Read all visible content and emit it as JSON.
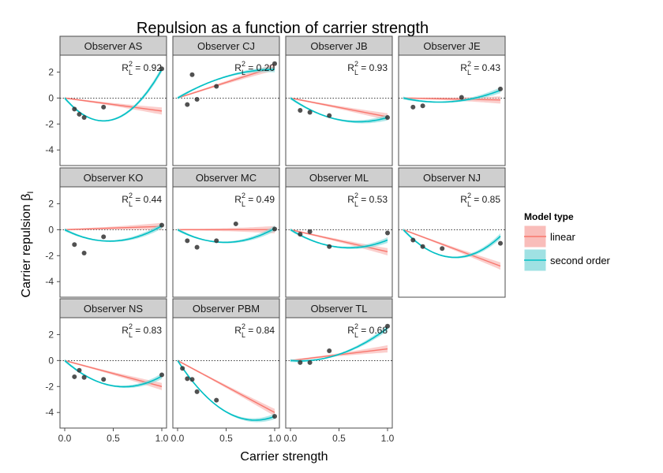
{
  "chart_data": {
    "type": "line",
    "title": "Repulsion as a function of carrier strength",
    "xlabel": "Carrier strength",
    "ylabel": "Carrier repulsion β",
    "ylabel_subscript": "I",
    "xlim": [
      0,
      1
    ],
    "ylim": [
      -5.2,
      3.3
    ],
    "x_ticks": [
      {
        "value": 0,
        "label": "0.0"
      },
      {
        "value": 0.5,
        "label": "0.5"
      },
      {
        "value": 1,
        "label": "1.0"
      }
    ],
    "y_ticks": [
      {
        "value": 2,
        "label": "2"
      },
      {
        "value": 0,
        "label": "0"
      },
      {
        "value": -2,
        "label": "-2"
      },
      {
        "value": -4,
        "label": "-4"
      }
    ],
    "reference_line": 0,
    "r2_prefix": "R",
    "r2_sup": "2",
    "r2_sub": "L",
    "legend": {
      "title": "Model type",
      "position": "right",
      "entries": [
        {
          "key": "linear",
          "label": "linear",
          "color": "#F8766D",
          "fill": "#F8A8A4"
        },
        {
          "key": "quadratic",
          "label": "second order",
          "color": "#00BFC4",
          "fill": "#7FD8DA"
        }
      ]
    },
    "point_color": "#333333",
    "panels": [
      {
        "label": "Observer AS",
        "r2": "0.92",
        "points": [
          [
            0.1,
            -0.85
          ],
          [
            0.15,
            -1.25
          ],
          [
            0.2,
            -1.5
          ],
          [
            0.4,
            -0.7
          ],
          [
            1.0,
            2.25
          ]
        ],
        "linear": [
          0,
          -1
        ],
        "quadratic": [
          0,
          -8.8,
          11.0
        ]
      },
      {
        "label": "Observer CJ",
        "r2": "0.20",
        "points": [
          [
            0.1,
            -0.5
          ],
          [
            0.15,
            1.8
          ],
          [
            0.2,
            -0.1
          ],
          [
            0.4,
            0.9
          ],
          [
            1.0,
            2.65
          ]
        ],
        "linear": [
          0,
          2.4
        ],
        "quadratic": [
          0,
          4.4,
          -2.2
        ]
      },
      {
        "label": "Observer JB",
        "r2": "0.93",
        "points": [
          [
            0.1,
            -0.95
          ],
          [
            0.2,
            -1.1
          ],
          [
            0.4,
            -1.35
          ],
          [
            1.0,
            -1.5
          ]
        ],
        "linear": [
          0,
          -1.45
        ],
        "quadratic": [
          0,
          -5.2,
          3.7
        ]
      },
      {
        "label": "Observer JE",
        "r2": "0.43",
        "points": [
          [
            0.1,
            -0.7
          ],
          [
            0.2,
            -0.6
          ],
          [
            0.6,
            0.05
          ],
          [
            1.0,
            0.7
          ]
        ],
        "linear": [
          0,
          -0.15
        ],
        "quadratic": [
          0,
          -1.7,
          2.3
        ]
      },
      {
        "label": "Observer KO",
        "r2": "0.44",
        "points": [
          [
            0.1,
            -1.15
          ],
          [
            0.2,
            -1.8
          ],
          [
            0.4,
            -0.55
          ],
          [
            1.0,
            0.35
          ]
        ],
        "linear": [
          0,
          0.25
        ],
        "quadratic": [
          0,
          -3.8,
          4.1
        ]
      },
      {
        "label": "Observer MC",
        "r2": "0.49",
        "points": [
          [
            0.1,
            -0.85
          ],
          [
            0.2,
            -1.35
          ],
          [
            0.4,
            -0.85
          ],
          [
            0.6,
            0.45
          ],
          [
            1.0,
            0.05
          ]
        ],
        "linear": [
          0,
          0
        ],
        "quadratic": [
          0,
          -4.0,
          4.1
        ]
      },
      {
        "label": "Observer ML",
        "r2": "0.53",
        "points": [
          [
            0.1,
            -0.35
          ],
          [
            0.2,
            -0.15
          ],
          [
            0.4,
            -1.3
          ],
          [
            1.0,
            -0.25
          ]
        ],
        "linear": [
          0,
          -1.7
        ],
        "quadratic": [
          0,
          -4.6,
          3.8
        ]
      },
      {
        "label": "Observer NJ",
        "r2": "0.85",
        "points": [
          [
            0.1,
            -0.8
          ],
          [
            0.2,
            -1.3
          ],
          [
            0.4,
            -1.45
          ],
          [
            1.0,
            -1.05
          ]
        ],
        "linear": [
          0,
          -2.8
        ],
        "quadratic": [
          0,
          -8.0,
          7.5
        ]
      },
      {
        "label": "Observer NS",
        "r2": "0.83",
        "points": [
          [
            0.1,
            -1.25
          ],
          [
            0.15,
            -0.75
          ],
          [
            0.2,
            -1.3
          ],
          [
            0.4,
            -1.45
          ],
          [
            1.0,
            -1.1
          ]
        ],
        "linear": [
          0,
          -2.0
        ],
        "quadratic": [
          0,
          -6.6,
          5.4
        ]
      },
      {
        "label": "Observer PBM",
        "r2": "0.84",
        "points": [
          [
            0.05,
            -0.6
          ],
          [
            0.1,
            -1.4
          ],
          [
            0.15,
            -1.45
          ],
          [
            0.2,
            -2.4
          ],
          [
            0.4,
            -3.05
          ],
          [
            1.0,
            -4.3
          ]
        ],
        "linear": [
          0,
          -4.0
        ],
        "quadratic": [
          0,
          -11.5,
          7.2
        ]
      },
      {
        "label": "Observer TL",
        "r2": "0.68",
        "points": [
          [
            0.1,
            -0.15
          ],
          [
            0.2,
            -0.15
          ],
          [
            0.4,
            0.75
          ],
          [
            1.0,
            2.65
          ]
        ],
        "linear": [
          0,
          0.9
        ],
        "quadratic": [
          0,
          -0.6,
          3.1
        ]
      }
    ]
  }
}
